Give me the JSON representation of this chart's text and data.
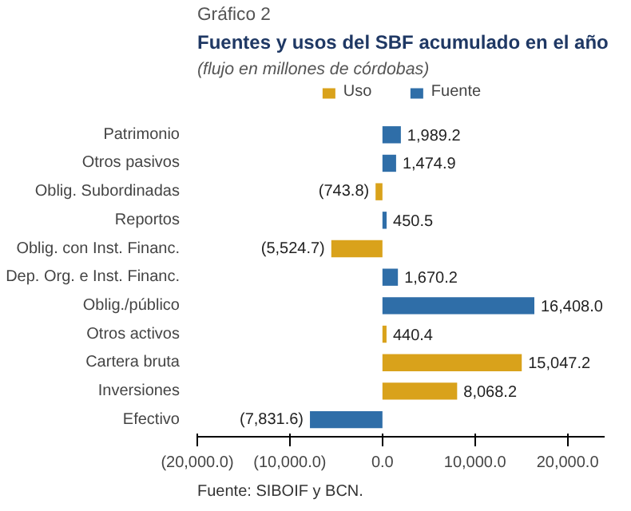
{
  "chart_data": {
    "type": "bar",
    "orientation": "horizontal",
    "title": "Fuentes y usos del SBF acumulado en el año",
    "subtitle": "(flujo en millones de córdobas)",
    "annotations": [
      "Gráfico 2",
      "Fuente: SIBOIF y BCN."
    ],
    "categories": [
      "Patrimonio",
      "Otros pasivos",
      "Oblig. Subordinadas",
      "Reportos",
      "Oblig. con Inst. Financ.",
      "Dep. Org. e Inst. Financ.",
      "Oblig./público",
      "Otros activos",
      "Cartera bruta",
      "Inversiones",
      "Efectivo"
    ],
    "series": [
      {
        "name": "Uso",
        "color": "#d9a21b",
        "values": [
          null,
          null,
          -743.8,
          null,
          -5524.7,
          null,
          null,
          440.4,
          15047.2,
          8068.2,
          null
        ],
        "value_labels": [
          null,
          null,
          "(743.8)",
          null,
          "(5,524.7)",
          null,
          null,
          "440.4",
          "15,047.2",
          "8,068.2",
          null
        ]
      },
      {
        "name": "Fuente",
        "color": "#2f6ea8",
        "values": [
          1989.2,
          1474.9,
          null,
          450.5,
          null,
          1670.2,
          16408.0,
          null,
          null,
          null,
          -7831.6
        ],
        "value_labels": [
          "1,989.2",
          "1,474.9",
          null,
          "450.5",
          null,
          "1,670.2",
          "16,408.0",
          null,
          null,
          null,
          "(7,831.6)"
        ]
      }
    ],
    "xlim": [
      -20000,
      24000
    ],
    "xticks": [
      {
        "value": -20000,
        "label": "(20,000.0)"
      },
      {
        "value": -10000,
        "label": "(10,000.0)"
      },
      {
        "value": 0,
        "label": "0.0"
      },
      {
        "value": 10000,
        "label": "10,000.0"
      },
      {
        "value": 20000,
        "label": "20,000.0"
      }
    ],
    "legend": "top",
    "grid": false
  }
}
